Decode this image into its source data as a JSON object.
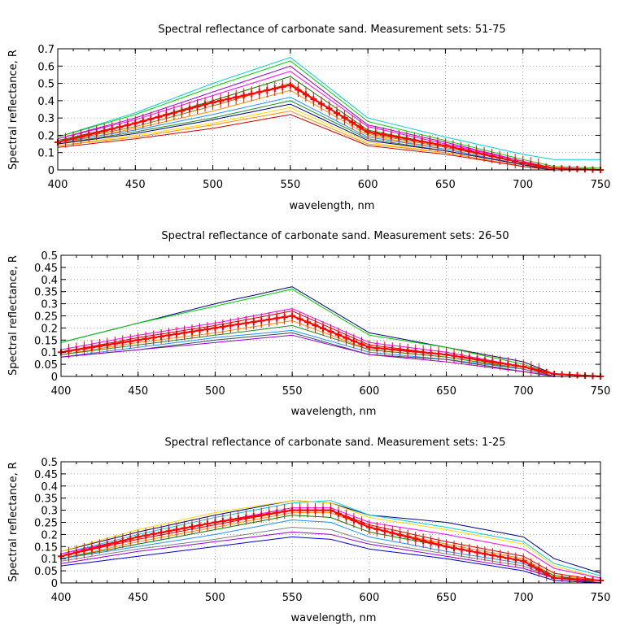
{
  "chart_data": [
    {
      "type": "line",
      "title": "Spectral reflectance of carbonate sand. Measurement sets: 51-75",
      "xlabel": "wavelength, nm",
      "ylabel": "Spectral reflectance, R",
      "xlim": [
        400,
        750
      ],
      "ylim": [
        0,
        0.7
      ],
      "xticks": [
        400,
        450,
        500,
        550,
        600,
        650,
        700,
        750
      ],
      "yticks": [
        0,
        0.1,
        0.2,
        0.3,
        0.4,
        0.5,
        0.6,
        0.7
      ],
      "grid": true,
      "x": [
        400,
        450,
        500,
        550,
        600,
        650,
        700,
        720,
        750
      ],
      "series": [
        {
          "color": "#00ced1",
          "values": [
            0.19,
            0.33,
            0.5,
            0.65,
            0.3,
            0.19,
            0.09,
            0.06,
            0.06
          ]
        },
        {
          "color": "#00cc00",
          "values": [
            0.19,
            0.32,
            0.48,
            0.63,
            0.28,
            0.17,
            0.06,
            0.02,
            0.01
          ]
        },
        {
          "color": "#9400d3",
          "values": [
            0.18,
            0.3,
            0.45,
            0.6,
            0.26,
            0.16,
            0.05,
            0.01,
            0.0
          ]
        },
        {
          "color": "#ff00ff",
          "values": [
            0.18,
            0.29,
            0.43,
            0.57,
            0.25,
            0.15,
            0.05,
            0.01,
            0.0
          ]
        },
        {
          "color": "#008000",
          "values": [
            0.17,
            0.27,
            0.4,
            0.54,
            0.23,
            0.14,
            0.04,
            0.01,
            0.0
          ]
        },
        {
          "color": "#808000",
          "values": [
            0.16,
            0.25,
            0.37,
            0.5,
            0.21,
            0.13,
            0.04,
            0.01,
            0.0
          ]
        },
        {
          "color": "#ff8c00",
          "values": [
            0.15,
            0.24,
            0.34,
            0.46,
            0.2,
            0.12,
            0.03,
            0.01,
            0.0
          ]
        },
        {
          "color": "#1e90ff",
          "values": [
            0.16,
            0.23,
            0.32,
            0.42,
            0.19,
            0.12,
            0.03,
            0.0,
            0.0
          ]
        },
        {
          "color": "#228b22",
          "values": [
            0.15,
            0.22,
            0.3,
            0.4,
            0.18,
            0.11,
            0.03,
            0.0,
            0.0
          ]
        },
        {
          "color": "#000080",
          "values": [
            0.15,
            0.21,
            0.29,
            0.38,
            0.17,
            0.11,
            0.03,
            0.0,
            0.0
          ]
        },
        {
          "color": "#ffd700",
          "values": [
            0.14,
            0.2,
            0.27,
            0.36,
            0.16,
            0.1,
            0.02,
            0.0,
            0.0
          ]
        },
        {
          "color": "#ff8c00",
          "values": [
            0.14,
            0.19,
            0.26,
            0.34,
            0.15,
            0.1,
            0.02,
            0.0,
            0.0
          ]
        },
        {
          "color": "#cc0000",
          "values": [
            0.13,
            0.18,
            0.24,
            0.32,
            0.14,
            0.09,
            0.02,
            0.0,
            0.0
          ]
        }
      ],
      "mean": {
        "color": "#ff0000",
        "values": [
          0.16,
          0.27,
          0.39,
          0.49,
          0.22,
          0.14,
          0.04,
          0.01,
          0.0
        ]
      }
    },
    {
      "type": "line",
      "title": "Spectral reflectance of carbonate sand. Measurement sets: 26-50",
      "xlabel": "wavelength, nm",
      "ylabel": "Spectral reflectance, R",
      "xlim": [
        400,
        750
      ],
      "ylim": [
        0,
        0.5
      ],
      "xticks": [
        400,
        450,
        500,
        550,
        600,
        650,
        700,
        750
      ],
      "yticks": [
        0,
        0.05,
        0.1,
        0.15,
        0.2,
        0.25,
        0.3,
        0.35,
        0.4,
        0.45,
        0.5
      ],
      "grid": true,
      "x": [
        400,
        450,
        500,
        550,
        600,
        650,
        700,
        720,
        750
      ],
      "series": [
        {
          "color": "#000080",
          "values": [
            0.14,
            0.22,
            0.3,
            0.37,
            0.18,
            0.12,
            0.06,
            0.01,
            0.0
          ]
        },
        {
          "color": "#00cc00",
          "values": [
            0.14,
            0.22,
            0.29,
            0.36,
            0.17,
            0.12,
            0.05,
            0.01,
            0.0
          ]
        },
        {
          "color": "#ff00ff",
          "values": [
            0.11,
            0.17,
            0.22,
            0.28,
            0.14,
            0.1,
            0.04,
            0.01,
            0.0
          ]
        },
        {
          "color": "#cc0000",
          "values": [
            0.1,
            0.16,
            0.21,
            0.27,
            0.13,
            0.09,
            0.04,
            0.0,
            0.0
          ]
        },
        {
          "color": "#808000",
          "values": [
            0.1,
            0.15,
            0.2,
            0.25,
            0.12,
            0.09,
            0.03,
            0.0,
            0.0
          ]
        },
        {
          "color": "#ff8c00",
          "values": [
            0.09,
            0.14,
            0.18,
            0.23,
            0.11,
            0.08,
            0.03,
            0.0,
            0.0
          ]
        },
        {
          "color": "#228b22",
          "values": [
            0.09,
            0.13,
            0.17,
            0.21,
            0.11,
            0.08,
            0.03,
            0.0,
            0.0
          ]
        },
        {
          "color": "#1e90ff",
          "values": [
            0.08,
            0.12,
            0.16,
            0.19,
            0.1,
            0.07,
            0.03,
            0.0,
            0.0
          ]
        },
        {
          "color": "#2f4f4f",
          "values": [
            0.08,
            0.11,
            0.15,
            0.18,
            0.09,
            0.07,
            0.02,
            0.0,
            0.0
          ]
        },
        {
          "color": "#9400d3",
          "values": [
            0.08,
            0.11,
            0.14,
            0.17,
            0.09,
            0.06,
            0.02,
            0.0,
            0.0
          ]
        }
      ],
      "mean": {
        "color": "#ff0000",
        "values": [
          0.1,
          0.15,
          0.2,
          0.25,
          0.12,
          0.09,
          0.04,
          0.01,
          0.0
        ]
      }
    },
    {
      "type": "line",
      "title": "Spectral reflectance of carbonate sand. Measurement sets: 1-25",
      "xlabel": "wavelength, nm",
      "ylabel": "Spectral reflectance, R",
      "xlim": [
        400,
        750
      ],
      "ylim": [
        0,
        0.5
      ],
      "xticks": [
        400,
        450,
        500,
        550,
        600,
        650,
        700,
        750
      ],
      "yticks": [
        0,
        0.05,
        0.1,
        0.15,
        0.2,
        0.25,
        0.3,
        0.35,
        0.4,
        0.45,
        0.5
      ],
      "grid": true,
      "x": [
        400,
        450,
        500,
        550,
        575,
        600,
        650,
        700,
        720,
        750
      ],
      "series": [
        {
          "color": "#000080",
          "values": [
            0.13,
            0.21,
            0.28,
            0.34,
            0.33,
            0.28,
            0.25,
            0.19,
            0.1,
            0.04
          ]
        },
        {
          "color": "#00ced1",
          "values": [
            0.12,
            0.2,
            0.27,
            0.33,
            0.34,
            0.28,
            0.23,
            0.17,
            0.08,
            0.03
          ]
        },
        {
          "color": "#ffd700",
          "values": [
            0.13,
            0.22,
            0.29,
            0.34,
            0.33,
            0.27,
            0.22,
            0.16,
            0.07,
            0.02
          ]
        },
        {
          "color": "#ff00ff",
          "values": [
            0.12,
            0.19,
            0.25,
            0.31,
            0.31,
            0.25,
            0.2,
            0.14,
            0.06,
            0.02
          ]
        },
        {
          "color": "#cc0000",
          "values": [
            0.11,
            0.18,
            0.24,
            0.3,
            0.3,
            0.24,
            0.17,
            0.11,
            0.04,
            0.01
          ]
        },
        {
          "color": "#ff8c00",
          "values": [
            0.1,
            0.17,
            0.23,
            0.29,
            0.29,
            0.23,
            0.16,
            0.1,
            0.03,
            0.01
          ]
        },
        {
          "color": "#008000",
          "values": [
            0.1,
            0.16,
            0.22,
            0.28,
            0.27,
            0.21,
            0.15,
            0.09,
            0.03,
            0.0
          ]
        },
        {
          "color": "#1e90ff",
          "values": [
            0.1,
            0.15,
            0.2,
            0.26,
            0.25,
            0.19,
            0.13,
            0.08,
            0.02,
            0.0
          ]
        },
        {
          "color": "#808080",
          "values": [
            0.09,
            0.14,
            0.18,
            0.23,
            0.22,
            0.17,
            0.12,
            0.07,
            0.02,
            0.0
          ]
        },
        {
          "color": "#9400d3",
          "values": [
            0.08,
            0.13,
            0.17,
            0.21,
            0.2,
            0.16,
            0.11,
            0.06,
            0.02,
            0.0
          ]
        },
        {
          "color": "#0000cd",
          "values": [
            0.07,
            0.11,
            0.15,
            0.19,
            0.18,
            0.14,
            0.1,
            0.05,
            0.01,
            0.0
          ]
        }
      ],
      "mean": {
        "color": "#ff0000",
        "values": [
          0.11,
          0.19,
          0.25,
          0.3,
          0.3,
          0.23,
          0.15,
          0.09,
          0.02,
          0.01
        ]
      }
    }
  ]
}
